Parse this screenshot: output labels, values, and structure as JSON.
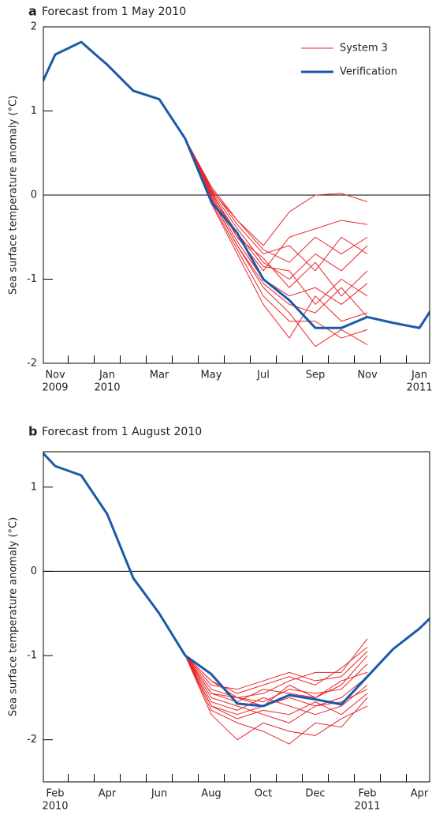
{
  "chart_data": [
    {
      "type": "line",
      "panel_label": "a",
      "title": "Forecast from 1 May 2010",
      "ylabel": "Sea surface temperature anomaly (°C)",
      "categories": [
        null,
        "Nov",
        null,
        "Jan",
        null,
        "Mar",
        null,
        "May",
        null,
        "Jul",
        null,
        "Sep",
        null,
        "Nov",
        null,
        "Jan",
        null
      ],
      "category_years": [
        null,
        "2009",
        null,
        "2010",
        null,
        null,
        null,
        null,
        null,
        null,
        null,
        null,
        null,
        null,
        null,
        "2011",
        null
      ],
      "ylim": [
        -2,
        2
      ],
      "yticks": [
        -2,
        -1,
        0,
        1,
        2
      ],
      "legend": true,
      "legend_position": "upper right",
      "series": [
        {
          "name": "System 3",
          "color": "#e8262b",
          "members": [
            [
              null,
              null,
              null,
              null,
              null,
              null,
              0.67,
              0.1,
              -0.3,
              -0.6,
              -0.2,
              0.0,
              0.02,
              -0.08,
              null,
              null,
              null
            ],
            [
              null,
              null,
              null,
              null,
              null,
              null,
              0.67,
              0.0,
              -0.5,
              -0.9,
              -0.5,
              -0.4,
              -0.3,
              -0.35,
              null,
              null,
              null
            ],
            [
              null,
              null,
              null,
              null,
              null,
              null,
              0.67,
              -0.1,
              -0.7,
              -1.3,
              -1.7,
              -1.2,
              -1.5,
              -1.4,
              null,
              null,
              null
            ],
            [
              null,
              null,
              null,
              null,
              null,
              null,
              0.67,
              -0.05,
              -0.6,
              -1.1,
              -1.4,
              -1.8,
              -1.6,
              -1.78,
              null,
              null,
              null
            ],
            [
              null,
              null,
              null,
              null,
              null,
              null,
              0.67,
              0.05,
              -0.4,
              -0.8,
              -1.0,
              -0.7,
              -0.9,
              -0.6,
              null,
              null,
              null
            ],
            [
              null,
              null,
              null,
              null,
              null,
              null,
              0.67,
              -0.02,
              -0.55,
              -1.0,
              -1.2,
              -1.1,
              -1.3,
              -1.05,
              null,
              null,
              null
            ],
            [
              null,
              null,
              null,
              null,
              null,
              null,
              0.67,
              0.08,
              -0.35,
              -0.7,
              -0.6,
              -0.9,
              -0.5,
              -0.7,
              null,
              null,
              null
            ],
            [
              null,
              null,
              null,
              null,
              null,
              null,
              0.67,
              -0.08,
              -0.65,
              -1.2,
              -1.5,
              -1.5,
              -1.7,
              -1.6,
              null,
              null,
              null
            ],
            [
              null,
              null,
              null,
              null,
              null,
              null,
              0.67,
              0.02,
              -0.45,
              -0.85,
              -0.9,
              -1.3,
              -1.0,
              -1.2,
              null,
              null,
              null
            ],
            [
              null,
              null,
              null,
              null,
              null,
              null,
              0.67,
              0.04,
              -0.5,
              -0.75,
              -1.1,
              -0.8,
              -1.2,
              -0.9,
              null,
              null,
              null
            ],
            [
              null,
              null,
              null,
              null,
              null,
              null,
              0.67,
              -0.04,
              -0.6,
              -1.05,
              -1.3,
              -1.4,
              -1.1,
              -1.45,
              null,
              null,
              null
            ],
            [
              null,
              null,
              null,
              null,
              null,
              null,
              0.67,
              0.06,
              -0.3,
              -0.65,
              -0.8,
              -0.5,
              -0.7,
              -0.5,
              null,
              null,
              null
            ]
          ]
        },
        {
          "name": "Verification",
          "color": "#1a5aa8",
          "values": [
            1.0,
            1.67,
            1.82,
            1.55,
            1.24,
            1.14,
            0.67,
            -0.08,
            -0.45,
            -1.0,
            -1.25,
            -1.58,
            -1.58,
            -1.45,
            -1.52,
            -1.58,
            -1.1
          ]
        }
      ]
    },
    {
      "type": "line",
      "panel_label": "b",
      "title": "Forecast from 1 August 2010",
      "ylabel": "Sea surface temperature anomaly (°C)",
      "categories": [
        null,
        "Feb",
        null,
        "Apr",
        null,
        "Jun",
        null,
        "Aug",
        null,
        "Oct",
        null,
        "Dec",
        null,
        "Feb",
        null,
        "Apr",
        null
      ],
      "category_years": [
        null,
        "2010",
        null,
        null,
        null,
        null,
        null,
        null,
        null,
        null,
        null,
        null,
        null,
        "2011",
        null,
        null,
        null
      ],
      "ylim": [
        -2.5,
        1.42
      ],
      "yticks": [
        -2,
        -1,
        0,
        1
      ],
      "legend": false,
      "series": [
        {
          "name": "System 3",
          "color": "#e8262b",
          "members": [
            [
              null,
              null,
              null,
              null,
              null,
              null,
              -1,
              -1.3,
              -1.5,
              -1.45,
              -1.3,
              -1.2,
              -1.2,
              -0.8,
              null,
              null,
              null
            ],
            [
              null,
              null,
              null,
              null,
              null,
              null,
              -1,
              -1.6,
              -1.7,
              -1.6,
              -1.5,
              -1.6,
              -1.5,
              -1.25,
              null,
              null,
              null
            ],
            [
              null,
              null,
              null,
              null,
              null,
              null,
              -1,
              -1.7,
              -2.0,
              -1.8,
              -1.9,
              -1.95,
              -1.75,
              -1.6,
              null,
              null,
              null
            ],
            [
              null,
              null,
              null,
              null,
              null,
              null,
              -1,
              -1.45,
              -1.55,
              -1.4,
              -1.45,
              -1.5,
              -1.35,
              -1.0,
              null,
              null,
              null
            ],
            [
              null,
              null,
              null,
              null,
              null,
              null,
              -1,
              -1.5,
              -1.6,
              -1.7,
              -1.8,
              -1.6,
              -1.55,
              -1.4,
              null,
              null,
              null
            ],
            [
              null,
              null,
              null,
              null,
              null,
              null,
              -1,
              -1.35,
              -1.4,
              -1.3,
              -1.2,
              -1.3,
              -1.25,
              -0.95,
              null,
              null,
              null
            ],
            [
              null,
              null,
              null,
              null,
              null,
              null,
              -1,
              -1.65,
              -1.8,
              -1.9,
              -2.05,
              -1.8,
              -1.85,
              -1.5,
              null,
              null,
              null
            ],
            [
              null,
              null,
              null,
              null,
              null,
              null,
              -1,
              -1.4,
              -1.5,
              -1.55,
              -1.4,
              -1.45,
              -1.4,
              -1.1,
              null,
              null,
              null
            ],
            [
              null,
              null,
              null,
              null,
              null,
              null,
              -1,
              -1.55,
              -1.65,
              -1.5,
              -1.6,
              -1.7,
              -1.6,
              -1.35,
              null,
              null,
              null
            ],
            [
              null,
              null,
              null,
              null,
              null,
              null,
              -1,
              -1.3,
              -1.45,
              -1.35,
              -1.25,
              -1.35,
              -1.15,
              -0.9,
              null,
              null,
              null
            ],
            [
              null,
              null,
              null,
              null,
              null,
              null,
              -1,
              -1.6,
              -1.75,
              -1.65,
              -1.7,
              -1.55,
              -1.7,
              -1.45,
              null,
              null,
              null
            ],
            [
              null,
              null,
              null,
              null,
              null,
              null,
              -1,
              -1.45,
              -1.5,
              -1.6,
              -1.35,
              -1.5,
              -1.3,
              -1.2,
              null,
              null,
              null
            ]
          ]
        },
        {
          "name": "Verification",
          "color": "#1a5aa8",
          "values": [
            1.58,
            1.25,
            1.14,
            0.68,
            -0.08,
            -0.5,
            -1.0,
            -1.22,
            -1.57,
            -1.6,
            -1.47,
            -1.52,
            -1.58,
            -1.25,
            -0.92,
            -0.68,
            -0.38
          ]
        }
      ]
    }
  ]
}
